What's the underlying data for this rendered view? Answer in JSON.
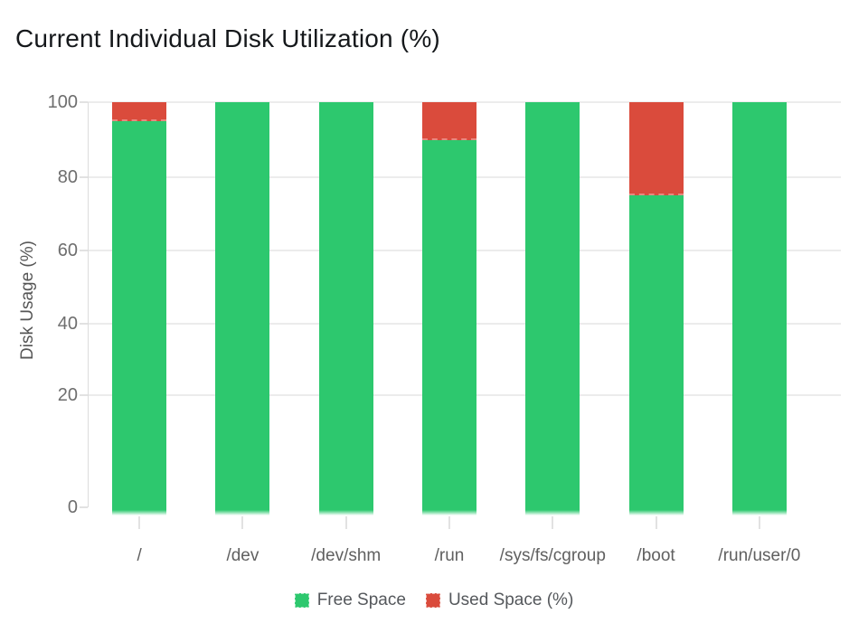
{
  "chart_data": {
    "type": "bar",
    "stacked": true,
    "title": "Current Individual Disk Utilization (%)",
    "xlabel": "",
    "ylabel": "Disk Usage (%)",
    "ylim": [
      0,
      100
    ],
    "yticks": [
      0,
      20,
      40,
      60,
      80,
      100
    ],
    "grid": true,
    "legend_position": "bottom",
    "categories": [
      "/",
      "/dev",
      "/dev/shm",
      "/run",
      "/sys/fs/cgroup",
      "/boot",
      "/run/user/0"
    ],
    "series": [
      {
        "name": "Free Space",
        "color": "#2dc86e",
        "values": [
          95,
          100,
          100,
          90,
          100,
          75,
          100
        ]
      },
      {
        "name": "Used Space (%)",
        "color": "#da4b3c",
        "values": [
          5,
          0,
          0,
          10,
          0,
          25,
          0
        ]
      }
    ]
  },
  "colors": {
    "free": "#2dc86e",
    "used": "#da4b3c",
    "grid": "#ececec",
    "axis": "#dcdcdc",
    "tick_label": "#6e6e6e",
    "category_label": "#606060",
    "ylabel": "#565656",
    "legend_text": "#55585c",
    "title": "#15181b",
    "background": "#ffffff"
  }
}
